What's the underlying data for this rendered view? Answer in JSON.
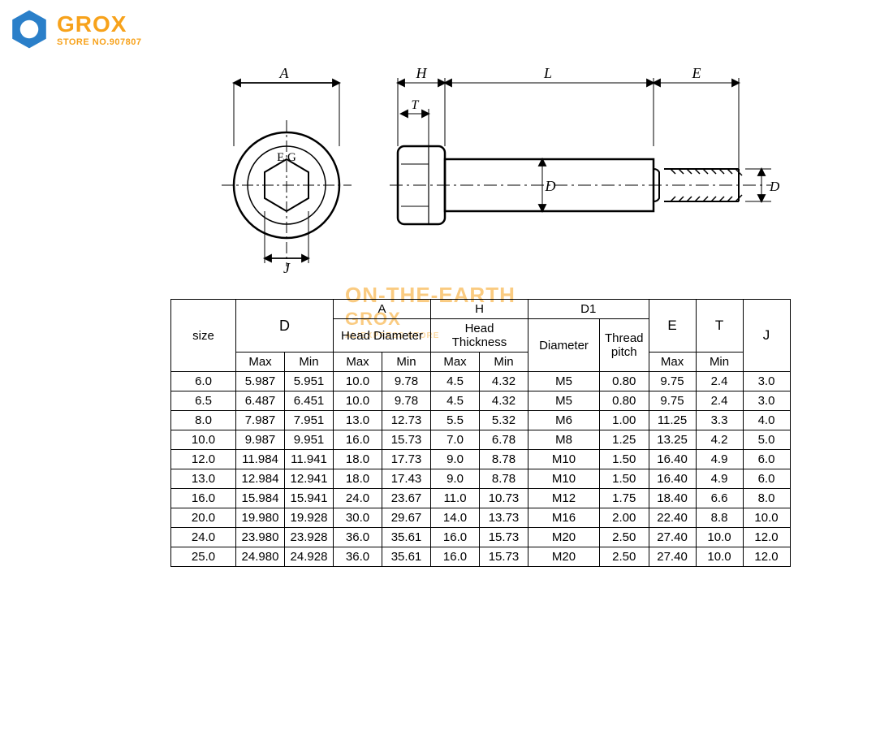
{
  "logo": {
    "brand": "GROX",
    "subline": "STORE NO.907807",
    "hex_color": "#2a7fc9",
    "text_color": "#f7a21b"
  },
  "watermark": {
    "line1": "ON-THE-EARTH",
    "line2": "GROX",
    "line3": "ALIEXPRESS STORE"
  },
  "diagram": {
    "front_labels": {
      "A": "A",
      "J": "J",
      "EG": "E.G"
    },
    "side_labels": {
      "H": "H",
      "T": "T",
      "L": "L",
      "E": "E",
      "D": "D",
      "D1": "D₁"
    },
    "line_color": "#000000",
    "dash_color": "#000000"
  },
  "table": {
    "columns": {
      "size": "size",
      "D": "D",
      "A": "A",
      "A_sub": "Head Diameter",
      "H": "H",
      "H_sub": "Head Thickness",
      "D1": "D1",
      "D1_diam": "Diameter",
      "D1_pitch": "Thread pitch",
      "E": "E",
      "T": "T",
      "J": "J",
      "Max": "Max",
      "Min": "Min"
    },
    "rows": [
      {
        "size": "6.0",
        "Dmax": "5.987",
        "Dmin": "5.951",
        "Amax": "10.0",
        "Amin": "9.78",
        "Hmax": "4.5",
        "Hmin": "4.32",
        "diam": "M5",
        "pitch": "0.80",
        "E": "9.75",
        "T": "2.4",
        "J": "3.0"
      },
      {
        "size": "6.5",
        "Dmax": "6.487",
        "Dmin": "6.451",
        "Amax": "10.0",
        "Amin": "9.78",
        "Hmax": "4.5",
        "Hmin": "4.32",
        "diam": "M5",
        "pitch": "0.80",
        "E": "9.75",
        "T": "2.4",
        "J": "3.0"
      },
      {
        "size": "8.0",
        "Dmax": "7.987",
        "Dmin": "7.951",
        "Amax": "13.0",
        "Amin": "12.73",
        "Hmax": "5.5",
        "Hmin": "5.32",
        "diam": "M6",
        "pitch": "1.00",
        "E": "11.25",
        "T": "3.3",
        "J": "4.0"
      },
      {
        "size": "10.0",
        "Dmax": "9.987",
        "Dmin": "9.951",
        "Amax": "16.0",
        "Amin": "15.73",
        "Hmax": "7.0",
        "Hmin": "6.78",
        "diam": "M8",
        "pitch": "1.25",
        "E": "13.25",
        "T": "4.2",
        "J": "5.0"
      },
      {
        "size": "12.0",
        "Dmax": "11.984",
        "Dmin": "11.941",
        "Amax": "18.0",
        "Amin": "17.73",
        "Hmax": "9.0",
        "Hmin": "8.78",
        "diam": "M10",
        "pitch": "1.50",
        "E": "16.40",
        "T": "4.9",
        "J": "6.0"
      },
      {
        "size": "13.0",
        "Dmax": "12.984",
        "Dmin": "12.941",
        "Amax": "18.0",
        "Amin": "17.43",
        "Hmax": "9.0",
        "Hmin": "8.78",
        "diam": "M10",
        "pitch": "1.50",
        "E": "16.40",
        "T": "4.9",
        "J": "6.0"
      },
      {
        "size": "16.0",
        "Dmax": "15.984",
        "Dmin": "15.941",
        "Amax": "24.0",
        "Amin": "23.67",
        "Hmax": "11.0",
        "Hmin": "10.73",
        "diam": "M12",
        "pitch": "1.75",
        "E": "18.40",
        "T": "6.6",
        "J": "8.0"
      },
      {
        "size": "20.0",
        "Dmax": "19.980",
        "Dmin": "19.928",
        "Amax": "30.0",
        "Amin": "29.67",
        "Hmax": "14.0",
        "Hmin": "13.73",
        "diam": "M16",
        "pitch": "2.00",
        "E": "22.40",
        "T": "8.8",
        "J": "10.0"
      },
      {
        "size": "24.0",
        "Dmax": "23.980",
        "Dmin": "23.928",
        "Amax": "36.0",
        "Amin": "35.61",
        "Hmax": "16.0",
        "Hmin": "15.73",
        "diam": "M20",
        "pitch": "2.50",
        "E": "27.40",
        "T": "10.0",
        "J": "12.0"
      },
      {
        "size": "25.0",
        "Dmax": "24.980",
        "Dmin": "24.928",
        "Amax": "36.0",
        "Amin": "35.61",
        "Hmax": "16.0",
        "Hmin": "15.73",
        "diam": "M20",
        "pitch": "2.50",
        "E": "27.40",
        "T": "10.0",
        "J": "12.0"
      }
    ],
    "border_color": "#000000",
    "font_size": 15
  }
}
